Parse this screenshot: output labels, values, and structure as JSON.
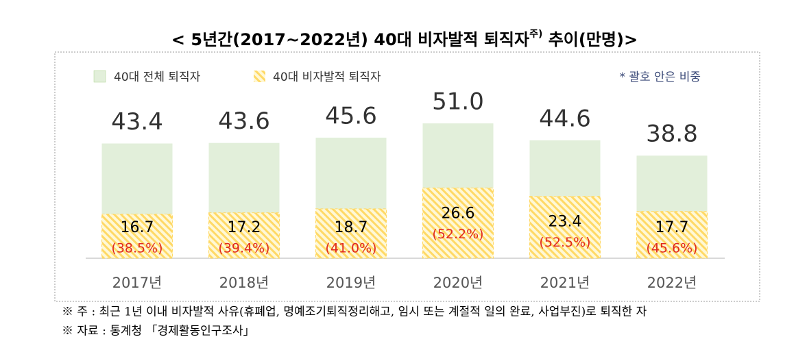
{
  "chart_data": {
    "type": "overlap-bar",
    "title": "< 5년간(2017~2022년) 40대 비자발적 퇴직자",
    "title_sup": "주)",
    "title_end": " 추이(만명)>",
    "note": "* 괄호 안은 비중",
    "categories": [
      "2017년",
      "2018년",
      "2019년",
      "2020년",
      "2021년",
      "2022년"
    ],
    "series": [
      {
        "name": "40대 전체 퇴직자",
        "color": "#e2efda",
        "values": [
          43.4,
          43.6,
          45.6,
          51.0,
          44.6,
          38.8
        ],
        "value_labels": [
          "43.4",
          "43.6",
          "45.6",
          "51.0",
          "44.6",
          "38.8"
        ]
      },
      {
        "name": "40대 비자발적 퇴직자",
        "color": "#ffd966",
        "values": [
          16.7,
          17.2,
          18.7,
          26.6,
          23.4,
          17.7
        ],
        "shares": [
          {
            "value": 38.5,
            "label": "(38.5%)"
          },
          {
            "value": 39.4,
            "label": "(39.4%)"
          },
          {
            "value": 41.0,
            "label": "(41.0%)"
          },
          {
            "value": 52.2,
            "label": "(52.2%)"
          },
          {
            "value": 52.5,
            "label": "(52.5%)"
          },
          {
            "value": 45.6,
            "label": "(45.6%)"
          }
        ]
      }
    ],
    "footnotes": [
      "※ 주 : 최근 1년 이내 비자발적 사유(휴폐업, 명예조기퇴직정리해고, 임시 또는 계절적 일의 완료, 사업부진)로 퇴직한 자",
      "※  자료  :  통계청 「경제활동인구조사」"
    ]
  }
}
